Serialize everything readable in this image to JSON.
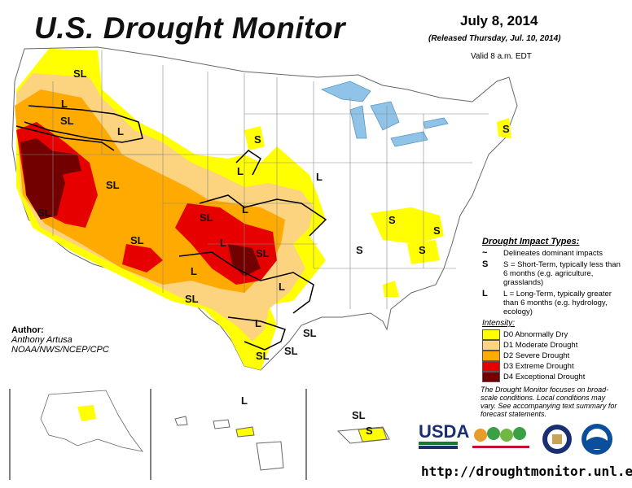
{
  "header": {
    "title": "U.S. Drought Monitor",
    "date": "July 8, 2014",
    "released": "(Released Thursday, Jul. 10, 2014)",
    "valid": "Valid 8 a.m. EDT"
  },
  "author": {
    "label": "Author:",
    "name": "Anthony Artusa",
    "org": "NOAA/NWS/NCEP/CPC"
  },
  "legend": {
    "impact_header": "Drought Impact Types:",
    "impact_items": [
      {
        "symbol": "~",
        "text": "Delineates dominant impacts"
      },
      {
        "symbol": "S",
        "text": "S = Short-Term, typically less than 6 months (e.g. agriculture, grasslands)"
      },
      {
        "symbol": "L",
        "text": "L = Long-Term, typically greater than 6 months (e.g. hydrology, ecology)"
      }
    ],
    "intensity_header": "Intensity:",
    "intensity": [
      {
        "code": "D0",
        "label": "D0 Abnormally Dry",
        "color": "#ffff00"
      },
      {
        "code": "D1",
        "label": "D1 Moderate Drought",
        "color": "#fcd37f"
      },
      {
        "code": "D2",
        "label": "D2 Severe Drought",
        "color": "#ffaa00"
      },
      {
        "code": "D3",
        "label": "D3 Extreme Drought",
        "color": "#e60000"
      },
      {
        "code": "D4",
        "label": "D4 Exceptional Drought",
        "color": "#730000"
      }
    ]
  },
  "note": "The Drought Monitor focuses on broad-scale conditions. Local conditions may vary. See accompanying text summary for forecast statements.",
  "url": "http://droughtmonitor.unl.edu/",
  "logos": {
    "usda": "USDA"
  },
  "map_labels": {
    "sl": "SL",
    "l": "L",
    "s": "S"
  }
}
